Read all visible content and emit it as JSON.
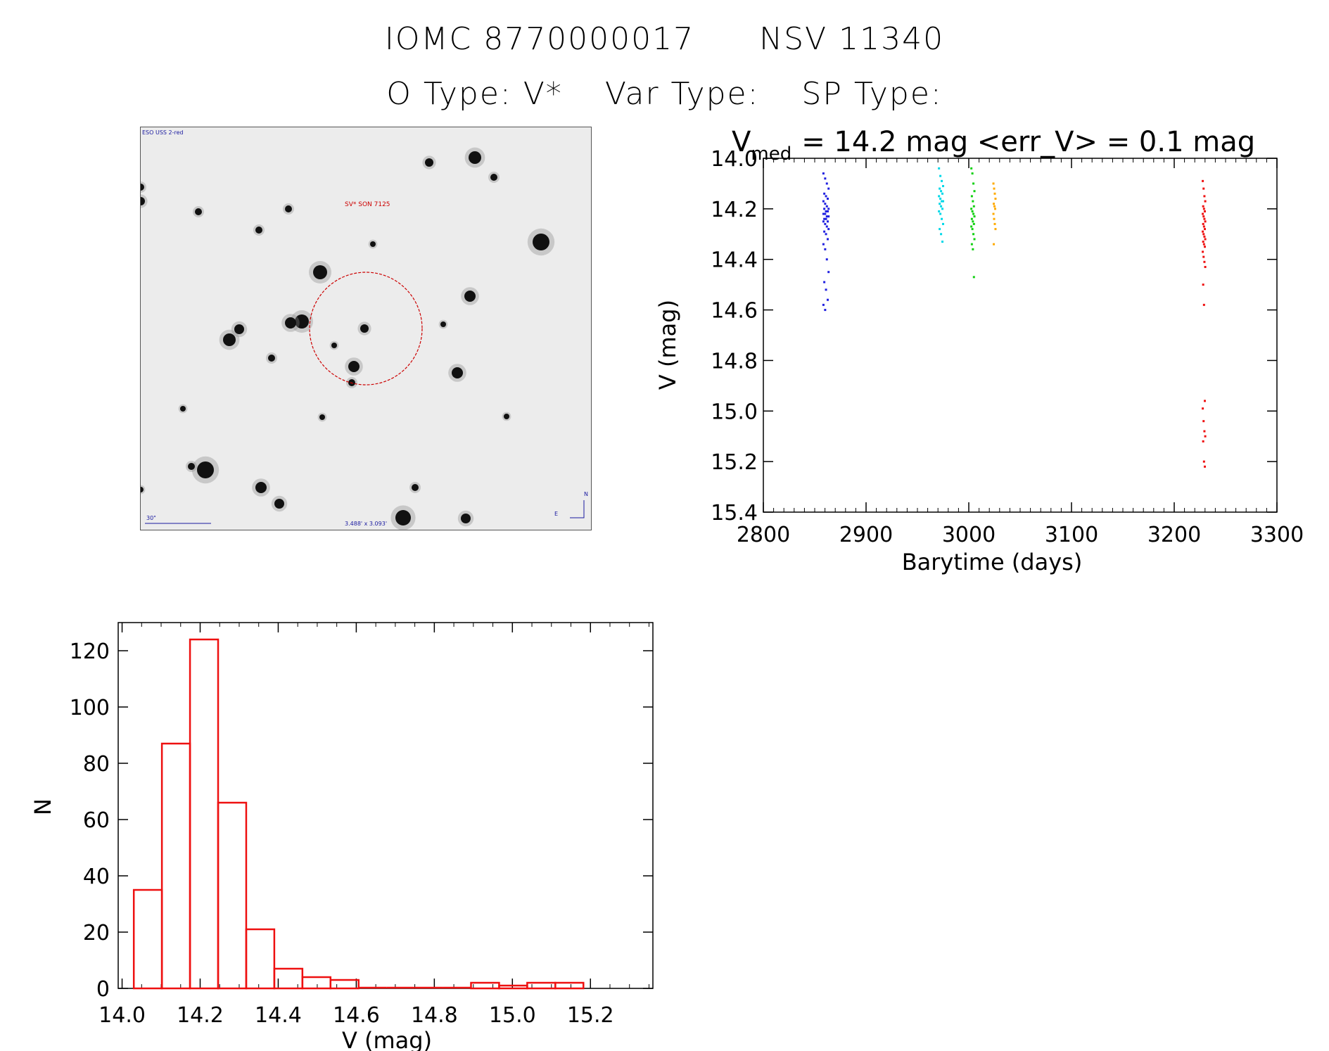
{
  "header": {
    "line1": [
      "IOMC 8770000017",
      "NSV 11340"
    ],
    "line2": [
      "O Type: V*",
      "Var Type:",
      "SP Type:"
    ]
  },
  "finder": {
    "survey_label": "ESO USS 2-red",
    "object_label": "SV* SON 7125",
    "scale_label": "30\"",
    "size_label": "3.488' x 3.093'",
    "compass_n": "N",
    "compass_e": "E",
    "circle_color": "#cc0000"
  },
  "chart_data": [
    {
      "type": "scatter",
      "title_parts": {
        "prefix": "V",
        "subscript": "med",
        "rest": "= 14.2 mag <err_V> = 0.1 mag"
      },
      "xlabel": "Barytime (days)",
      "ylabel": "V (mag)",
      "xlim": [
        2800,
        3300
      ],
      "ylim": [
        15.4,
        14.0
      ],
      "y_inverted": true,
      "xticks": [
        2800,
        2900,
        3000,
        3100,
        3200,
        3300
      ],
      "yticks": [
        "14.0",
        "14.2",
        "14.4",
        "14.6",
        "14.8",
        "15.0",
        "15.2",
        "15.4"
      ],
      "series": [
        {
          "color": "#2020e0",
          "x_center": 2861,
          "x_spread": 2.5,
          "values": [
            14.06,
            14.08,
            14.1,
            14.12,
            14.14,
            14.15,
            14.16,
            14.17,
            14.18,
            14.19,
            14.2,
            14.2,
            14.21,
            14.21,
            14.22,
            14.22,
            14.23,
            14.23,
            14.24,
            14.24,
            14.25,
            14.25,
            14.26,
            14.27,
            14.28,
            14.29,
            14.3,
            14.32,
            14.34,
            14.36,
            14.4,
            14.45,
            14.49,
            14.52,
            14.56,
            14.58,
            14.6
          ]
        },
        {
          "color": "#00d8e8",
          "x_center": 2973,
          "x_spread": 2,
          "values": [
            14.04,
            14.07,
            14.09,
            14.11,
            14.12,
            14.13,
            14.14,
            14.15,
            14.16,
            14.17,
            14.17,
            14.18,
            14.19,
            14.2,
            14.21,
            14.22,
            14.24,
            14.26,
            14.28,
            14.3,
            14.33
          ]
        },
        {
          "color": "#10d010",
          "x_center": 3004,
          "x_spread": 1.5,
          "values": [
            14.04,
            14.06,
            14.1,
            14.13,
            14.15,
            14.17,
            14.19,
            14.2,
            14.21,
            14.22,
            14.23,
            14.24,
            14.25,
            14.26,
            14.27,
            14.28,
            14.3,
            14.32,
            14.34,
            14.36,
            14.47
          ]
        },
        {
          "color": "#ffaa00",
          "x_center": 3025,
          "x_spread": 1,
          "values": [
            14.1,
            14.12,
            14.14,
            14.16,
            14.18,
            14.19,
            14.2,
            14.22,
            14.24,
            14.26,
            14.28,
            14.34
          ]
        },
        {
          "color": "#ee1010",
          "x_center": 3229,
          "x_spread": 1.2,
          "values": [
            14.09,
            14.12,
            14.15,
            14.17,
            14.19,
            14.2,
            14.21,
            14.22,
            14.23,
            14.24,
            14.25,
            14.26,
            14.27,
            14.28,
            14.29,
            14.3,
            14.31,
            14.32,
            14.33,
            14.34,
            14.35,
            14.37,
            14.39,
            14.41,
            14.43,
            14.5,
            14.58,
            14.96,
            14.99,
            15.04,
            15.08,
            15.1,
            15.12,
            15.2,
            15.22
          ]
        }
      ]
    },
    {
      "type": "bar",
      "subtype": "histogram",
      "xlabel": "V (mag)",
      "ylabel": "N",
      "xlim": [
        13.99,
        15.36
      ],
      "ylim": [
        0,
        130
      ],
      "xticks": [
        "14.0",
        "14.2",
        "14.4",
        "14.6",
        "14.8",
        "15.0",
        "15.2"
      ],
      "yticks": [
        "0",
        "20",
        "40",
        "60",
        "80",
        "100",
        "120"
      ],
      "bin_width": 0.072,
      "bin_start": 14.03,
      "counts": [
        35,
        87,
        124,
        66,
        21,
        7,
        4,
        3,
        0,
        0,
        0,
        0,
        2,
        1,
        2,
        2
      ],
      "color": "#ee1010"
    }
  ]
}
